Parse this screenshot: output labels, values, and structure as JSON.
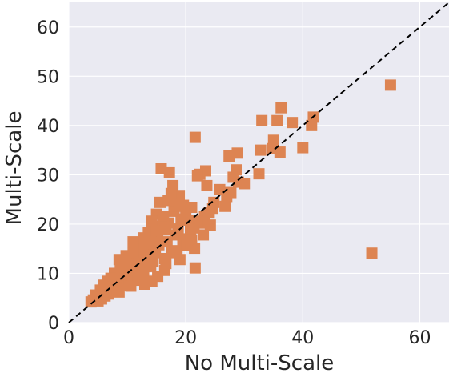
{
  "chart_data": {
    "type": "scatter",
    "title": "",
    "xlabel": "No Multi-Scale",
    "ylabel": "Multi-Scale",
    "xlim": [
      0,
      65
    ],
    "ylim": [
      0,
      65
    ],
    "x_ticks": [
      "0",
      "20",
      "40",
      "60"
    ],
    "y_ticks": [
      "0",
      "10",
      "20",
      "30",
      "40",
      "50",
      "60"
    ],
    "grid": true,
    "background": "#EAEAF2",
    "marker": "square",
    "marker_color": "#DD8452",
    "reference_line": {
      "style": "dashed",
      "color": "#000000",
      "from": [
        0,
        0
      ],
      "to": [
        65,
        65
      ]
    },
    "series": [
      {
        "points": [
          [
            55.0,
            48.2
          ],
          [
            51.8,
            14.1
          ],
          [
            41.8,
            41.7
          ],
          [
            41.5,
            40.0
          ],
          [
            40.0,
            35.5
          ],
          [
            38.2,
            40.6
          ],
          [
            36.3,
            43.6
          ],
          [
            36.1,
            34.6
          ],
          [
            35.6,
            41.0
          ],
          [
            35.0,
            37.0
          ],
          [
            34.8,
            35.3
          ],
          [
            33.0,
            41.0
          ],
          [
            32.8,
            35.0
          ],
          [
            32.5,
            30.2
          ],
          [
            30.0,
            28.2
          ],
          [
            29.0,
            28.5
          ],
          [
            28.8,
            34.4
          ],
          [
            28.6,
            31.0
          ],
          [
            28.1,
            29.5
          ],
          [
            27.7,
            26.4
          ],
          [
            27.4,
            33.8
          ],
          [
            27.0,
            25.6
          ],
          [
            26.7,
            23.6
          ],
          [
            25.8,
            27.0
          ],
          [
            24.8,
            24.4
          ],
          [
            24.6,
            23.2
          ],
          [
            24.0,
            22.4
          ],
          [
            23.6,
            27.8
          ],
          [
            23.4,
            30.8
          ],
          [
            23.2,
            21.5
          ],
          [
            22.8,
            20.2
          ],
          [
            22.4,
            30.1
          ],
          [
            22.0,
            29.8
          ],
          [
            21.6,
            37.6
          ],
          [
            21.4,
            19.2
          ],
          [
            21.5,
            15.1
          ],
          [
            21.6,
            11.1
          ],
          [
            21.0,
            23.4
          ],
          [
            20.8,
            18.6
          ],
          [
            20.5,
            20.8
          ],
          [
            20.0,
            22.0
          ],
          [
            19.8,
            17.0
          ],
          [
            19.5,
            16.2
          ],
          [
            19.2,
            21.0
          ],
          [
            18.9,
            25.8
          ],
          [
            18.7,
            19.0
          ],
          [
            18.5,
            14.6
          ],
          [
            18.2,
            17.8
          ],
          [
            18.0,
            22.6
          ],
          [
            17.8,
            27.8
          ],
          [
            17.5,
            26.2
          ],
          [
            17.2,
            30.4
          ],
          [
            17.0,
            20.2
          ],
          [
            16.8,
            16.4
          ],
          [
            16.6,
            18.8
          ],
          [
            16.4,
            13.0
          ],
          [
            16.2,
            21.6
          ],
          [
            16.0,
            19.4
          ],
          [
            15.8,
            31.2
          ],
          [
            15.6,
            24.4
          ],
          [
            15.4,
            15.8
          ],
          [
            15.2,
            17.6
          ],
          [
            15.0,
            22.0
          ],
          [
            14.8,
            14.2
          ],
          [
            14.6,
            19.6
          ],
          [
            14.4,
            12.4
          ],
          [
            14.2,
            20.6
          ],
          [
            14.0,
            16.8
          ],
          [
            13.8,
            15.2
          ],
          [
            13.6,
            18.2
          ],
          [
            13.4,
            13.6
          ],
          [
            13.2,
            11.4
          ],
          [
            13.0,
            16.0
          ],
          [
            12.8,
            17.2
          ],
          [
            12.6,
            14.0
          ],
          [
            12.4,
            12.0
          ],
          [
            12.2,
            15.6
          ],
          [
            12.0,
            10.8
          ],
          [
            11.8,
            13.4
          ],
          [
            11.6,
            14.8
          ],
          [
            11.4,
            9.6
          ],
          [
            11.2,
            12.6
          ],
          [
            11.0,
            16.4
          ],
          [
            10.8,
            11.0
          ],
          [
            10.6,
            13.2
          ],
          [
            10.4,
            9.2
          ],
          [
            10.2,
            12.2
          ],
          [
            10.0,
            10.2
          ],
          [
            9.8,
            13.6
          ],
          [
            9.6,
            8.2
          ],
          [
            9.4,
            11.2
          ],
          [
            9.2,
            9.8
          ],
          [
            9.0,
            7.6
          ],
          [
            8.8,
            10.6
          ],
          [
            8.6,
            12.8
          ],
          [
            8.4,
            8.8
          ],
          [
            8.2,
            9.4
          ],
          [
            8.0,
            7.0
          ],
          [
            7.8,
            10.0
          ],
          [
            7.6,
            8.0
          ],
          [
            7.4,
            6.4
          ],
          [
            7.2,
            9.0
          ],
          [
            7.0,
            7.4
          ],
          [
            6.8,
            5.8
          ],
          [
            6.6,
            8.4
          ],
          [
            6.4,
            6.8
          ],
          [
            6.2,
            5.4
          ],
          [
            6.0,
            7.6
          ],
          [
            5.8,
            6.0
          ],
          [
            5.6,
            4.8
          ],
          [
            5.4,
            6.6
          ],
          [
            5.2,
            5.2
          ],
          [
            5.0,
            4.4
          ],
          [
            4.6,
            5.6
          ],
          [
            4.2,
            4.6
          ],
          [
            3.8,
            4.2
          ],
          [
            20.2,
            15.6
          ],
          [
            19.0,
            12.8
          ],
          [
            17.6,
            14.2
          ],
          [
            16.4,
            10.6
          ],
          [
            15.2,
            9.4
          ],
          [
            14.2,
            8.4
          ],
          [
            13.0,
            7.8
          ],
          [
            12.0,
            13.2
          ],
          [
            11.0,
            14.2
          ],
          [
            24.2,
            19.8
          ],
          [
            23.0,
            17.8
          ],
          [
            22.0,
            20.6
          ],
          [
            18.4,
            23.6
          ],
          [
            17.0,
            24.8
          ],
          [
            15.0,
            18.6
          ],
          [
            14.0,
            11.4
          ],
          [
            21.0,
            16.8
          ],
          [
            19.6,
            23.8
          ],
          [
            16.6,
            12.0
          ],
          [
            12.8,
            10.0
          ],
          [
            11.8,
            8.6
          ],
          [
            10.6,
            7.4
          ],
          [
            9.6,
            11.8
          ],
          [
            8.6,
            6.2
          ]
        ]
      }
    ]
  }
}
